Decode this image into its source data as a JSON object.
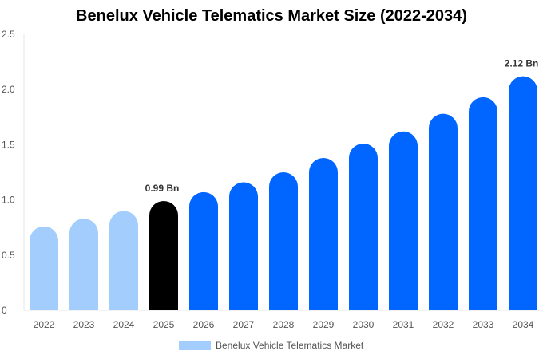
{
  "chart_data": {
    "type": "bar",
    "title": "Benelux Vehicle Telematics Market Size (2022-2034)",
    "categories": [
      "2022",
      "2023",
      "2024",
      "2025",
      "2026",
      "2027",
      "2028",
      "2029",
      "2030",
      "2031",
      "2032",
      "2033",
      "2034"
    ],
    "series": [
      {
        "name": "Benelux Vehicle Telematics Market",
        "values": [
          0.76,
          0.83,
          0.9,
          0.99,
          1.07,
          1.16,
          1.25,
          1.38,
          1.51,
          1.62,
          1.78,
          1.93,
          2.12
        ]
      }
    ],
    "ylim": [
      0,
      2.5
    ],
    "yticks": [
      "0",
      "0.5",
      "1.0",
      "1.5",
      "2.0",
      "2.5"
    ],
    "data_labels": [
      {
        "index": 3,
        "text": "0.99 Bn"
      },
      {
        "index": 12,
        "text": "2.12 Bn"
      }
    ],
    "colors": {
      "historical": "#a3cdfd",
      "current": "#000000",
      "forecast": "#0066ff"
    },
    "grid": false,
    "legend": "bottom"
  }
}
